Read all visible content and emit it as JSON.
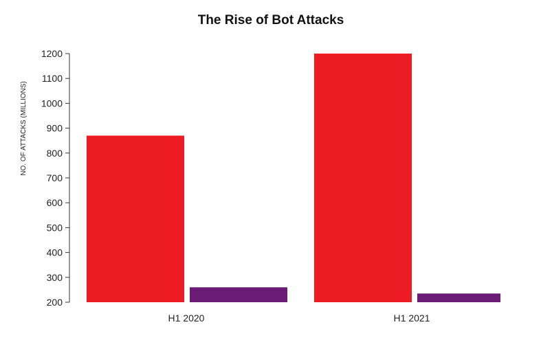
{
  "chart_data": {
    "type": "bar",
    "title": "The Rise of Bot Attacks",
    "xlabel": "",
    "ylabel": "NO. OF ATTACKS (MILLIONS)",
    "categories": [
      "H1 2020",
      "H1 2021"
    ],
    "series": [
      {
        "color": "#ed1c24",
        "values": [
          870,
          1200
        ]
      },
      {
        "color": "#6a1b75",
        "values": [
          260,
          235
        ]
      }
    ],
    "ylim": [
      200,
      1200
    ],
    "yticks": [
      200,
      300,
      400,
      500,
      600,
      700,
      800,
      900,
      1000,
      1100,
      1200
    ],
    "grid": false,
    "legend": "none"
  }
}
